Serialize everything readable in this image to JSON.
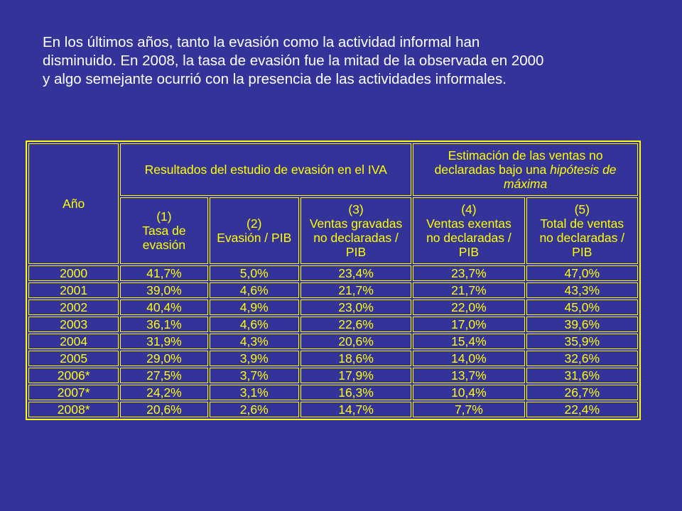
{
  "intro": {
    "line1": "En los últimos años, tanto la evasión como la actividad informal han",
    "line2": "disminuido. En 2008, la tasa de evasión fue la mitad de la observada en 2000",
    "line3": "y algo semejante ocurrió con la presencia de las actividades informales."
  },
  "table": {
    "year_header": "Año",
    "group1_header": "Resultados del estudio de evasión en el IVA",
    "group2_header_line1": "Estimación de las ventas  no",
    "group2_header_line2a": "declaradas bajo una ",
    "group2_header_line2b": "hipótesis de",
    "group2_header_line3": "máxima",
    "columns": [
      {
        "num": "(1)",
        "l1": "Tasa de",
        "l2": "evasión"
      },
      {
        "num": "(2)",
        "l1": "Evasión / PIB",
        "l2": ""
      },
      {
        "num": "(3)",
        "l1": "Ventas gravadas",
        "l2": "no declaradas /",
        "l3": "PIB"
      },
      {
        "num": "(4)",
        "l1": "Ventas exentas",
        "l2": "no declaradas /",
        "l3": "PIB"
      },
      {
        "num": "(5)",
        "l1": "Total de ventas",
        "l2": "no declaradas /",
        "l3": "PIB"
      }
    ],
    "rows": [
      [
        "2000",
        "41,7%",
        "5,0%",
        "23,4%",
        "23,7%",
        "47,0%"
      ],
      [
        "2001",
        "39,0%",
        "4,6%",
        "21,7%",
        "21,7%",
        "43,3%"
      ],
      [
        "2002",
        "40,4%",
        "4,9%",
        "23,0%",
        "22,0%",
        "45,0%"
      ],
      [
        "2003",
        "36,1%",
        "4,6%",
        "22,6%",
        "17,0%",
        "39,6%"
      ],
      [
        "2004",
        "31,9%",
        "4,3%",
        "20,6%",
        "15,4%",
        "35,9%"
      ],
      [
        "2005",
        "29,0%",
        "3,9%",
        "18,6%",
        "14,0%",
        "32,6%"
      ],
      [
        "2006*",
        "27,5%",
        "3,7%",
        "17,9%",
        "13,7%",
        "31,6%"
      ],
      [
        "2007*",
        "24,2%",
        "3,1%",
        "16,3%",
        "10,4%",
        "26,7%"
      ],
      [
        "2008*",
        "20,6%",
        "2,6%",
        "14,7%",
        "7,7%",
        "22,4%"
      ]
    ]
  }
}
